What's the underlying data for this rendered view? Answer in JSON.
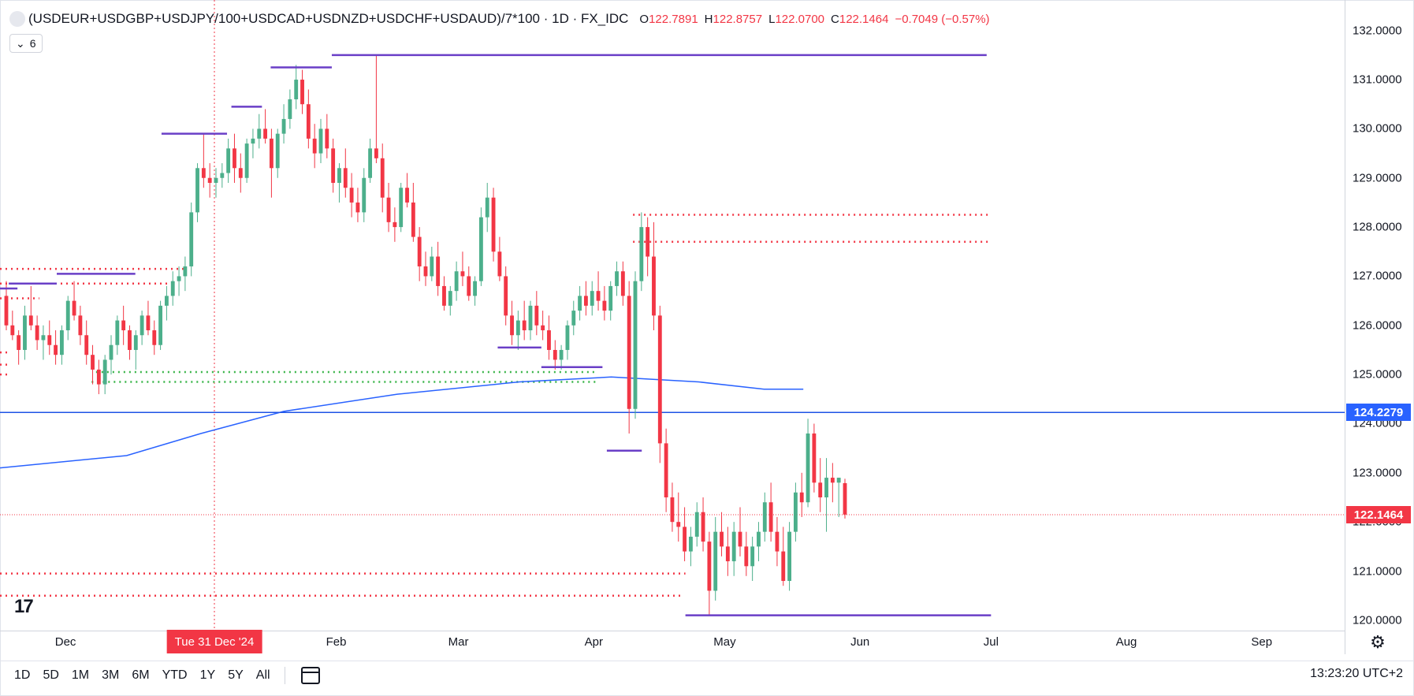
{
  "header": {
    "symbol": "(USDEUR+USDGBP+USDJPY/100+USDCAD+USDNZD+USDCHF+USDAUD)/7*100 · 1D · FX_IDC",
    "ohlc": [
      {
        "key": "O",
        "value": "122.7891"
      },
      {
        "key": "H",
        "value": "122.8757"
      },
      {
        "key": "L",
        "value": "122.0700"
      },
      {
        "key": "C",
        "value": "122.1464"
      }
    ],
    "change": "−0.7049 (−0.57%)",
    "indicator_count": "6"
  },
  "colors": {
    "up": "#4caf8b",
    "down": "#f23645",
    "ma": "#2962ff",
    "level": "#6a3fc7",
    "hline": "#1e53e5",
    "support_dotted": "#3bb54a"
  },
  "price_tags": {
    "hline": "124.2279",
    "last": "122.1464"
  },
  "crosshair_date": "Tue 31 Dec '24",
  "tv_logo": "17",
  "range_buttons": [
    "1D",
    "5D",
    "1M",
    "3M",
    "6M",
    "YTD",
    "1Y",
    "5Y",
    "All"
  ],
  "clock": "13:23:20 UTC+2",
  "chart_data": {
    "type": "candlestick",
    "ylim": [
      119.95,
      132.3
    ],
    "y_ticks": [
      "132.0000",
      "131.0000",
      "130.0000",
      "129.0000",
      "128.0000",
      "127.0000",
      "126.0000",
      "125.0000",
      "124.0000",
      "123.0000",
      "122.0000",
      "121.0000",
      "120.0000"
    ],
    "x_ticks": [
      {
        "label": "Dec",
        "date": "2024-12-01"
      },
      {
        "label": "Feb",
        "date": "2025-02-01"
      },
      {
        "label": "Mar",
        "date": "2025-03-01"
      },
      {
        "label": "Apr",
        "date": "2025-04-01"
      },
      {
        "label": "May",
        "date": "2025-05-01"
      },
      {
        "label": "Jun",
        "date": "2025-06-01"
      },
      {
        "label": "Jul",
        "date": "2025-07-01"
      },
      {
        "label": "Aug",
        "date": "2025-08-01"
      },
      {
        "label": "Sep",
        "date": "2025-09-01"
      }
    ],
    "x_range": [
      "2024-11-16",
      "2025-09-20"
    ],
    "horizontal_line": 124.2279,
    "last_price": 122.1464,
    "moving_average": [
      {
        "date": "2024-11-16",
        "value": 123.1
      },
      {
        "date": "2024-12-15",
        "value": 123.35
      },
      {
        "date": "2025-01-01",
        "value": 123.8
      },
      {
        "date": "2025-01-20",
        "value": 124.25
      },
      {
        "date": "2025-02-15",
        "value": 124.6
      },
      {
        "date": "2025-03-15",
        "value": 124.85
      },
      {
        "date": "2025-04-05",
        "value": 124.95
      },
      {
        "date": "2025-04-25",
        "value": 124.85
      },
      {
        "date": "2025-05-10",
        "value": 124.7
      },
      {
        "date": "2025-05-19",
        "value": 124.7
      }
    ],
    "solid_levels": [
      {
        "from": "2024-11-16",
        "to": "2024-11-20",
        "value": 126.75
      },
      {
        "from": "2024-11-18",
        "to": "2024-11-29",
        "value": 126.85
      },
      {
        "from": "2024-11-29",
        "to": "2024-12-17",
        "value": 127.05
      },
      {
        "from": "2024-12-23",
        "to": "2025-01-07",
        "value": 129.9
      },
      {
        "from": "2025-01-08",
        "to": "2025-01-15",
        "value": 130.45
      },
      {
        "from": "2025-01-17",
        "to": "2025-01-31",
        "value": 131.25
      },
      {
        "from": "2025-01-31",
        "to": "2025-06-30",
        "value": 131.5
      },
      {
        "from": "2025-03-10",
        "to": "2025-03-20",
        "value": 125.55
      },
      {
        "from": "2025-03-20",
        "to": "2025-04-03",
        "value": 125.15
      },
      {
        "from": "2025-04-04",
        "to": "2025-04-12",
        "value": 123.45
      },
      {
        "from": "2025-04-22",
        "to": "2025-07-01",
        "value": 120.1
      }
    ],
    "red_dotted_levels": [
      {
        "from": "2024-11-16",
        "to": "2024-12-28",
        "value": 127.15
      },
      {
        "from": "2024-11-16",
        "to": "2024-12-26",
        "value": 126.85
      },
      {
        "from": "2024-11-16",
        "to": "2024-11-25",
        "value": 126.55
      },
      {
        "from": "2024-11-16",
        "to": "2024-11-18",
        "value": 125.45
      },
      {
        "from": "2024-11-16",
        "to": "2024-11-18",
        "value": 125.2
      },
      {
        "from": "2024-11-16",
        "to": "2024-11-18",
        "value": 125.0
      },
      {
        "from": "2025-04-10",
        "to": "2025-07-01",
        "value": 128.25
      },
      {
        "from": "2025-04-10",
        "to": "2025-07-01",
        "value": 127.7
      },
      {
        "from": "2024-11-16",
        "to": "2025-04-22",
        "value": 120.95
      },
      {
        "from": "2024-11-16",
        "to": "2025-04-21",
        "value": 120.5
      }
    ],
    "green_dotted_levels": [
      {
        "from": "2024-12-08",
        "to": "2025-04-02",
        "value": 125.05
      },
      {
        "from": "2024-12-07",
        "to": "2025-04-02",
        "value": 124.85
      }
    ],
    "candles_ohlc": [
      [
        126.6,
        126.9,
        125.9,
        126.0
      ],
      [
        126.0,
        126.3,
        125.7,
        125.8
      ],
      [
        125.8,
        125.9,
        125.2,
        125.5
      ],
      [
        125.5,
        126.4,
        125.3,
        126.2
      ],
      [
        126.2,
        126.8,
        125.9,
        126.0
      ],
      [
        126.0,
        126.2,
        125.5,
        125.7
      ],
      [
        125.7,
        126.0,
        125.3,
        125.8
      ],
      [
        125.8,
        126.1,
        125.4,
        125.6
      ],
      [
        125.6,
        125.9,
        125.2,
        125.4
      ],
      [
        125.4,
        126.0,
        125.2,
        125.9
      ],
      [
        125.9,
        126.6,
        125.7,
        126.5
      ],
      [
        126.5,
        126.9,
        126.1,
        126.2
      ],
      [
        126.2,
        126.4,
        125.6,
        125.8
      ],
      [
        125.8,
        126.1,
        125.2,
        125.4
      ],
      [
        125.4,
        125.6,
        124.8,
        125.1
      ],
      [
        125.1,
        125.3,
        124.6,
        124.8
      ],
      [
        124.8,
        125.4,
        124.6,
        125.3
      ],
      [
        125.3,
        125.8,
        125.0,
        125.6
      ],
      [
        125.6,
        126.2,
        125.4,
        126.1
      ],
      [
        126.1,
        126.4,
        125.6,
        125.9
      ],
      [
        125.9,
        126.0,
        125.3,
        125.5
      ],
      [
        125.5,
        125.9,
        125.1,
        125.8
      ],
      [
        125.8,
        126.3,
        125.6,
        126.2
      ],
      [
        126.2,
        126.5,
        125.8,
        125.9
      ],
      [
        125.9,
        126.1,
        125.4,
        125.6
      ],
      [
        125.6,
        126.5,
        125.5,
        126.4
      ],
      [
        126.4,
        126.8,
        126.1,
        126.6
      ],
      [
        126.6,
        127.1,
        126.4,
        126.9
      ],
      [
        126.9,
        127.2,
        126.6,
        127.0
      ],
      [
        127.0,
        127.4,
        126.7,
        127.2
      ],
      [
        127.2,
        128.5,
        127.0,
        128.3
      ],
      [
        128.3,
        129.3,
        128.1,
        129.2
      ],
      [
        129.2,
        129.9,
        128.8,
        129.0
      ],
      [
        129.0,
        129.3,
        128.6,
        128.9
      ],
      [
        128.9,
        129.2,
        128.6,
        129.0
      ],
      [
        129.0,
        129.3,
        128.8,
        129.1
      ],
      [
        129.1,
        129.8,
        128.9,
        129.6
      ],
      [
        129.6,
        129.9,
        128.9,
        129.2
      ],
      [
        129.2,
        129.5,
        128.7,
        129.0
      ],
      [
        129.0,
        129.8,
        128.9,
        129.7
      ],
      [
        129.7,
        130.0,
        129.4,
        129.8
      ],
      [
        129.8,
        130.3,
        129.6,
        130.0
      ],
      [
        130.0,
        130.4,
        129.7,
        129.8
      ],
      [
        129.8,
        130.0,
        128.6,
        129.2
      ],
      [
        129.2,
        130.0,
        129.0,
        129.9
      ],
      [
        129.9,
        130.5,
        129.7,
        130.2
      ],
      [
        130.2,
        130.8,
        130.0,
        130.6
      ],
      [
        130.6,
        131.3,
        130.4,
        131.0
      ],
      [
        131.0,
        131.2,
        130.3,
        130.5
      ],
      [
        130.5,
        130.8,
        129.6,
        129.8
      ],
      [
        129.8,
        130.1,
        129.2,
        129.5
      ],
      [
        129.5,
        130.2,
        129.3,
        130.0
      ],
      [
        130.0,
        130.3,
        129.4,
        129.6
      ],
      [
        129.6,
        129.8,
        128.7,
        128.9
      ],
      [
        128.9,
        129.3,
        128.5,
        129.2
      ],
      [
        129.2,
        129.6,
        128.6,
        128.8
      ],
      [
        128.8,
        129.1,
        128.2,
        128.5
      ],
      [
        128.5,
        128.8,
        128.1,
        128.3
      ],
      [
        128.3,
        129.2,
        128.1,
        129.0
      ],
      [
        129.0,
        129.8,
        128.9,
        129.6
      ],
      [
        129.6,
        131.5,
        129.3,
        129.4
      ],
      [
        129.4,
        129.7,
        128.3,
        128.6
      ],
      [
        128.6,
        128.9,
        127.9,
        128.1
      ],
      [
        128.1,
        128.4,
        127.7,
        128.0
      ],
      [
        128.0,
        128.9,
        127.9,
        128.8
      ],
      [
        128.8,
        129.1,
        128.4,
        128.5
      ],
      [
        128.5,
        128.9,
        127.7,
        127.8
      ],
      [
        127.8,
        128.0,
        126.9,
        127.2
      ],
      [
        127.2,
        127.5,
        126.8,
        127.0
      ],
      [
        127.0,
        127.6,
        126.9,
        127.4
      ],
      [
        127.4,
        127.7,
        126.6,
        126.8
      ],
      [
        126.8,
        127.0,
        126.3,
        126.4
      ],
      [
        126.4,
        126.8,
        126.2,
        126.7
      ],
      [
        126.7,
        127.3,
        126.5,
        127.1
      ],
      [
        127.1,
        127.5,
        126.8,
        127.0
      ],
      [
        127.0,
        127.2,
        126.5,
        126.6
      ],
      [
        126.6,
        127.0,
        126.4,
        126.9
      ],
      [
        126.9,
        128.4,
        126.8,
        128.2
      ],
      [
        128.2,
        128.9,
        127.9,
        128.6
      ],
      [
        128.6,
        128.8,
        127.3,
        127.5
      ],
      [
        127.5,
        127.8,
        126.9,
        127.0
      ],
      [
        127.0,
        127.2,
        126.0,
        126.2
      ],
      [
        126.2,
        126.5,
        125.6,
        125.8
      ],
      [
        125.8,
        126.3,
        125.5,
        126.1
      ],
      [
        126.1,
        126.5,
        125.7,
        125.9
      ],
      [
        125.9,
        126.5,
        125.7,
        126.4
      ],
      [
        126.4,
        126.7,
        125.8,
        126.0
      ],
      [
        126.0,
        126.3,
        125.7,
        125.9
      ],
      [
        125.9,
        126.2,
        125.3,
        125.5
      ],
      [
        125.5,
        125.7,
        125.1,
        125.3
      ],
      [
        125.3,
        125.6,
        125.1,
        125.5
      ],
      [
        125.5,
        126.1,
        125.3,
        126.0
      ],
      [
        126.0,
        126.5,
        125.8,
        126.3
      ],
      [
        126.3,
        126.8,
        126.1,
        126.6
      ],
      [
        126.6,
        126.9,
        126.2,
        126.4
      ],
      [
        126.4,
        126.9,
        126.2,
        126.7
      ],
      [
        126.7,
        127.1,
        126.3,
        126.5
      ],
      [
        126.5,
        126.8,
        126.1,
        126.3
      ],
      [
        126.3,
        126.9,
        126.1,
        126.8
      ],
      [
        126.8,
        127.3,
        126.6,
        127.1
      ],
      [
        127.1,
        127.3,
        126.4,
        126.6
      ],
      [
        126.6,
        126.9,
        123.8,
        124.3
      ],
      [
        124.3,
        127.1,
        124.1,
        126.9
      ],
      [
        126.9,
        128.3,
        126.7,
        128.0
      ],
      [
        128.0,
        128.2,
        127.0,
        127.4
      ],
      [
        127.4,
        128.1,
        125.9,
        126.2
      ],
      [
        126.2,
        126.4,
        123.2,
        123.6
      ],
      [
        123.6,
        123.9,
        122.2,
        122.5
      ],
      [
        122.5,
        122.8,
        121.8,
        122.0
      ],
      [
        122.0,
        122.6,
        121.6,
        121.9
      ],
      [
        121.9,
        122.3,
        121.2,
        121.4
      ],
      [
        121.4,
        121.9,
        121.1,
        121.7
      ],
      [
        121.7,
        122.4,
        121.5,
        122.2
      ],
      [
        122.2,
        122.5,
        121.4,
        121.6
      ],
      [
        121.6,
        121.8,
        120.1,
        120.6
      ],
      [
        120.6,
        122.1,
        120.4,
        121.8
      ],
      [
        121.8,
        122.2,
        121.3,
        121.5
      ],
      [
        121.5,
        121.9,
        120.9,
        121.2
      ],
      [
        121.2,
        122.0,
        120.9,
        121.8
      ],
      [
        121.8,
        122.3,
        121.3,
        121.5
      ],
      [
        121.5,
        121.8,
        120.9,
        121.1
      ],
      [
        121.1,
        121.7,
        120.8,
        121.5
      ],
      [
        121.5,
        122.0,
        121.2,
        121.8
      ],
      [
        121.8,
        122.6,
        121.6,
        122.4
      ],
      [
        122.4,
        122.8,
        121.6,
        121.8
      ],
      [
        121.8,
        122.1,
        121.1,
        121.4
      ],
      [
        121.4,
        121.9,
        120.7,
        120.8
      ],
      [
        120.8,
        122.0,
        120.6,
        121.8
      ],
      [
        121.8,
        122.8,
        121.6,
        122.6
      ],
      [
        122.6,
        123.0,
        122.1,
        122.4
      ],
      [
        122.4,
        124.1,
        122.3,
        123.8
      ],
      [
        123.8,
        124.0,
        122.6,
        122.8
      ],
      [
        122.8,
        123.3,
        122.2,
        122.5
      ],
      [
        122.5,
        123.3,
        121.8,
        122.9
      ],
      [
        122.9,
        123.2,
        122.4,
        122.8
      ],
      [
        122.8,
        122.9,
        122.1,
        122.9
      ],
      [
        122.79,
        122.88,
        122.07,
        122.15
      ]
    ]
  }
}
